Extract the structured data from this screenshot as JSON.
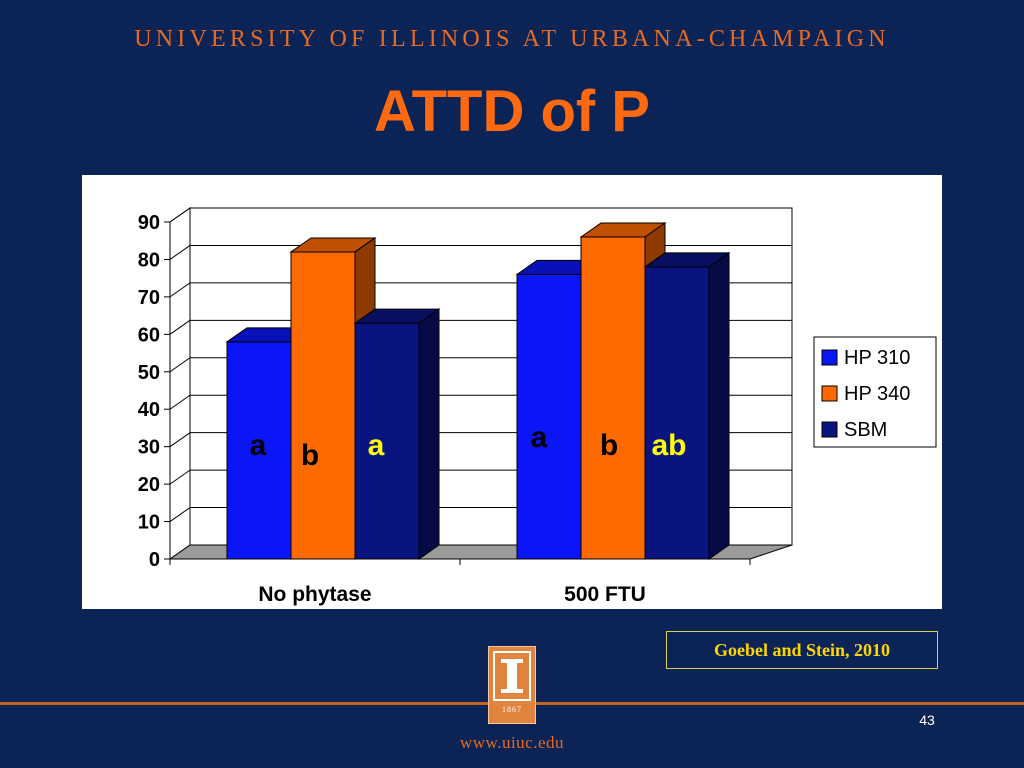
{
  "header": {
    "university": "UNIVERSITY OF ILLINOIS AT URBANA-CHAMPAIGN",
    "title": "ATTD of P"
  },
  "chart_data": {
    "type": "bar",
    "categories": [
      "No phytase",
      "500 FTU"
    ],
    "series": [
      {
        "name": "HP 310",
        "values": [
          58,
          76
        ],
        "color": "#0a16f5",
        "labels": [
          "a",
          "a"
        ],
        "label_colors": [
          "#000000",
          "#000000"
        ]
      },
      {
        "name": "HP 340",
        "values": [
          82,
          86
        ],
        "color": "#ff6a00",
        "labels": [
          "b",
          "b"
        ],
        "label_colors": [
          "#000000",
          "#000000"
        ]
      },
      {
        "name": "SBM",
        "values": [
          63,
          78
        ],
        "color": "#0a1480",
        "labels": [
          "a",
          "ab"
        ],
        "label_colors": [
          "#ffff00",
          "#ffff00"
        ]
      }
    ],
    "ylim": [
      0,
      90
    ],
    "yticks": [
      "0",
      "10",
      "20",
      "30",
      "40",
      "50",
      "60",
      "70",
      "80",
      "90"
    ],
    "grid": true,
    "legend_position": "right",
    "three_d": true
  },
  "footer": {
    "citation": "Goebel and Stein, 2010",
    "logo_year": "1867",
    "page_number": "43",
    "url": "www.uiuc.edu"
  }
}
